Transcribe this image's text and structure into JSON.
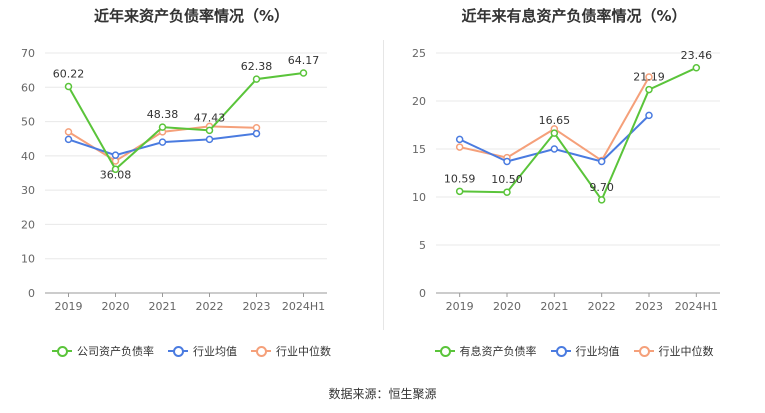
{
  "chart_data": [
    {
      "type": "line",
      "title": "近年来资产负债率情况（%）",
      "categories": [
        "2019",
        "2020",
        "2021",
        "2022",
        "2023",
        "2024H1"
      ],
      "ylim": [
        0,
        70
      ],
      "yticks": [
        0,
        10,
        20,
        30,
        40,
        50,
        60,
        70
      ],
      "grid": true,
      "legend_position": "bottom",
      "series": [
        {
          "name": "公司资产负债率",
          "color": "#5ac43a",
          "values": [
            60.22,
            36.08,
            48.38,
            47.43,
            62.38,
            64.17
          ],
          "labels": true
        },
        {
          "name": "行业均值",
          "color": "#4a7be0",
          "values": [
            44.8,
            40.2,
            44.0,
            44.8,
            46.5,
            null
          ],
          "labels": false
        },
        {
          "name": "行业中位数",
          "color": "#f5a07a",
          "values": [
            47.0,
            38.5,
            47.0,
            48.6,
            48.2,
            null
          ],
          "labels": false
        }
      ]
    },
    {
      "type": "line",
      "title": "近年来有息资产负债率情况（%）",
      "categories": [
        "2019",
        "2020",
        "2021",
        "2022",
        "2023",
        "2024H1"
      ],
      "ylim": [
        0,
        25
      ],
      "yticks": [
        0,
        5,
        10,
        15,
        20,
        25
      ],
      "grid": true,
      "legend_position": "bottom",
      "series": [
        {
          "name": "有息资产负债率",
          "color": "#5ac43a",
          "values": [
            10.59,
            10.5,
            16.65,
            9.7,
            21.19,
            23.46
          ],
          "labels": true
        },
        {
          "name": "行业均值",
          "color": "#4a7be0",
          "values": [
            16.0,
            13.7,
            15.0,
            13.7,
            18.5,
            null
          ],
          "labels": false
        },
        {
          "name": "行业中位数",
          "color": "#f5a07a",
          "values": [
            15.2,
            14.1,
            17.1,
            13.8,
            22.5,
            null
          ],
          "labels": false
        }
      ]
    }
  ],
  "data_labels": {
    "left": [
      "60.22",
      "36.08",
      "48.38",
      "47.43",
      "62.38",
      "64.17"
    ],
    "right": [
      "10.59",
      "10.50",
      "16.65",
      "9.70",
      "21.19",
      "23.46"
    ]
  },
  "source": "数据来源：恒生聚源"
}
